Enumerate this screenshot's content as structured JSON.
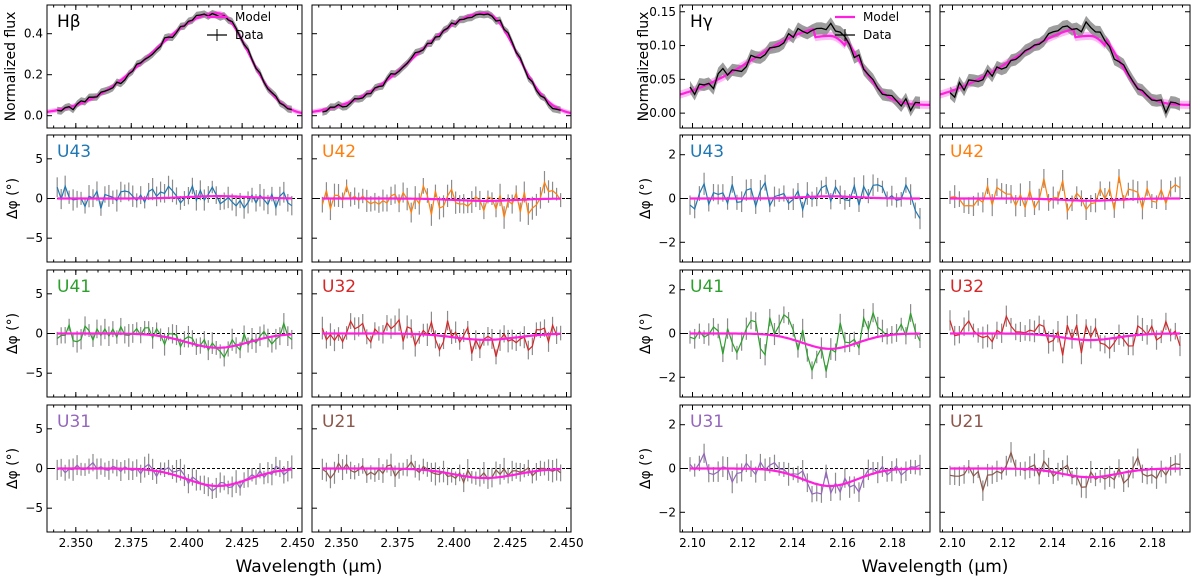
{
  "chart_data": {
    "type": "line",
    "xlabel": "Wavelength (μm)",
    "colors": {
      "model": "#ff1fde",
      "data": "#000000",
      "error": "#8c8c8c",
      "U43": "#1f77b4",
      "U42": "#ff7f0e",
      "U41": "#2ca02c",
      "U32": "#d62728",
      "U31": "#9467bd",
      "U21": "#8c564b"
    },
    "legend": {
      "model": "Model",
      "data": "Data",
      "placement": "top-right"
    },
    "groups": [
      {
        "line": "Hβ",
        "center": 2.414,
        "xlim": [
          2.337,
          2.452
        ],
        "xticks": [
          2.35,
          2.375,
          2.4,
          2.425,
          2.45
        ],
        "xticklabels": [
          "2.350",
          "2.375",
          "2.400",
          "2.425",
          "2.450"
        ],
        "flux_ylim": [
          -0.06,
          0.54
        ],
        "flux_yticks": [
          0.0,
          0.2,
          0.4
        ],
        "flux_yticklabels": [
          "0.0",
          "0.2",
          "0.4"
        ],
        "flux_ylabel": "Normalized flux",
        "phase_ylim": [
          -8.0,
          8.0
        ],
        "phase_yticks": [
          -5,
          0,
          5
        ],
        "phase_yticklabels": [
          "−5",
          "0",
          "5"
        ],
        "phase_ylabel": "Δφ (°)",
        "phase_panels": [
          {
            "baseline": "U43",
            "left_amp": 1.1,
            "right_amp": 1.2,
            "model_depth": 0.3,
            "bias": 0.2
          },
          {
            "baseline": "U42",
            "left_amp": 1.1,
            "right_amp": 1.4,
            "model_depth": -0.3,
            "bias": 0.4
          },
          {
            "baseline": "U41",
            "left_amp": 0.8,
            "right_amp": 0.9,
            "model_depth": -1.8,
            "bias": -0.3
          },
          {
            "baseline": "U32",
            "left_amp": 1.3,
            "right_amp": 1.4,
            "model_depth": -0.8,
            "bias": 1.0
          },
          {
            "baseline": "U31",
            "left_amp": 0.6,
            "right_amp": 0.7,
            "model_depth": -2.2,
            "bias": -0.2
          },
          {
            "baseline": "U21",
            "left_amp": 0.6,
            "right_amp": 0.7,
            "model_depth": -1.2,
            "bias": -0.4
          }
        ]
      },
      {
        "line": "Hγ",
        "center": 2.155,
        "xlim": [
          2.095,
          2.195
        ],
        "xticks": [
          2.1,
          2.12,
          2.14,
          2.16,
          2.18
        ],
        "xticklabels": [
          "2.10",
          "2.12",
          "2.14",
          "2.16",
          "2.18"
        ],
        "flux_ylim": [
          -0.022,
          0.16
        ],
        "flux_yticks": [
          0.0,
          0.05,
          0.1,
          0.15
        ],
        "flux_yticklabels": [
          "0.00",
          "0.05",
          "0.10",
          "0.15"
        ],
        "flux_ylabel": "Normalized flux",
        "phase_ylim": [
          -2.9,
          2.9
        ],
        "phase_yticks": [
          -2,
          0,
          2
        ],
        "phase_yticklabels": [
          "−2",
          "0",
          "2"
        ],
        "phase_ylabel": "Δφ (°)",
        "phase_panels": [
          {
            "baseline": "U43",
            "left_amp": 0.5,
            "right_amp": 0.6,
            "model_depth": 0.1,
            "bias": 0.1
          },
          {
            "baseline": "U42",
            "left_amp": 0.5,
            "right_amp": 0.6,
            "model_depth": -0.1,
            "bias": 0.1
          },
          {
            "baseline": "U41",
            "left_amp": 0.8,
            "right_amp": 0.9,
            "model_depth": -0.7,
            "bias": -0.4
          },
          {
            "baseline": "U32",
            "left_amp": 0.5,
            "right_amp": 0.5,
            "model_depth": -0.3,
            "bias": 0.4
          },
          {
            "baseline": "U31",
            "left_amp": 0.4,
            "right_amp": 0.5,
            "model_depth": -0.8,
            "bias": -0.2
          },
          {
            "baseline": "U21",
            "left_amp": 0.5,
            "right_amp": 0.5,
            "model_depth": -0.4,
            "bias": -0.2
          }
        ]
      }
    ]
  }
}
